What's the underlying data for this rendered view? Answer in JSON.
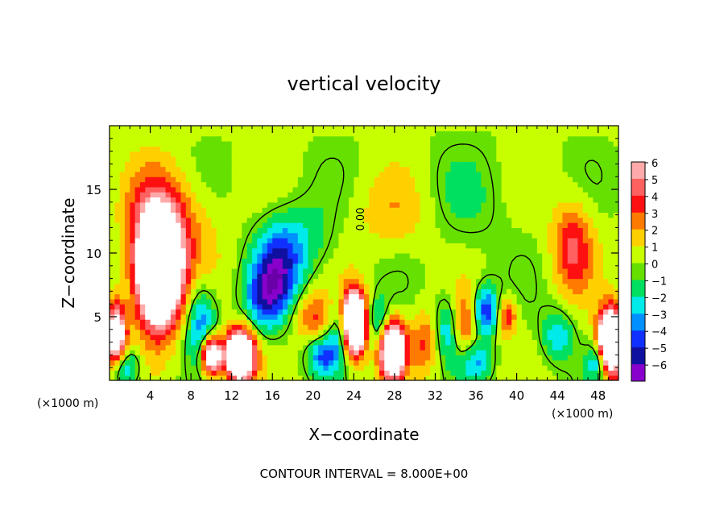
{
  "chart_data": {
    "type": "heatmap",
    "title": "vertical velocity",
    "xlabel": "X−coordinate",
    "ylabel": "Z−coordinate",
    "x_unit_left": "(×1000 m)",
    "x_unit_right": "(×1000 m)",
    "footer": "CONTOUR INTERVAL = 8.000E+00",
    "contour_label": "0.00",
    "xlim": [
      0,
      50
    ],
    "ylim": [
      0,
      20
    ],
    "x_ticks": [
      4,
      8,
      12,
      16,
      20,
      24,
      28,
      32,
      36,
      40,
      44,
      48
    ],
    "y_ticks": [
      5,
      10,
      15
    ],
    "colorbar": {
      "range": [
        -6,
        6
      ],
      "labels": [
        "6",
        "5",
        "4",
        "3",
        "2",
        "1",
        "0",
        "−1",
        "−2",
        "−3",
        "−4",
        "−5",
        "−6"
      ],
      "colors": [
        "#ffaaaa",
        "#ff6060",
        "#ff1010",
        "#ff7a00",
        "#ffd000",
        "#c8ff00",
        "#66e000",
        "#00e060",
        "#00eaea",
        "#0090ff",
        "#1030ff",
        "#1010a0",
        "#8800cc"
      ]
    },
    "features": [
      {
        "x": 4.8,
        "z": 8.5,
        "w": 15,
        "rx": 2.2,
        "rz": 4.2
      },
      {
        "x": 4.5,
        "z": 13.0,
        "w": 3,
        "rx": 3.0,
        "rz": 4.0
      },
      {
        "x": 0.6,
        "z": 3.5,
        "w": 9,
        "rx": 1.0,
        "rz": 2.5
      },
      {
        "x": 1.5,
        "z": 1.0,
        "w": -4,
        "rx": 1.5,
        "rz": 1.5
      },
      {
        "x": 9.0,
        "z": 4.5,
        "w": -4,
        "rx": 1.5,
        "rz": 3.0
      },
      {
        "x": 10.0,
        "z": 2.0,
        "w": 10,
        "rx": 1.0,
        "rz": 1.5
      },
      {
        "x": 12.8,
        "z": 2.0,
        "w": 13,
        "rx": 1.4,
        "rz": 2.0
      },
      {
        "x": 15.0,
        "z": 6.5,
        "w": -3,
        "rx": 2.0,
        "rz": 2.5
      },
      {
        "x": 16.5,
        "z": 8.5,
        "w": -5,
        "rx": 2.2,
        "rz": 3.5
      },
      {
        "x": 19.0,
        "z": 11.0,
        "w": -2,
        "rx": 3.0,
        "rz": 3.0
      },
      {
        "x": 20.0,
        "z": 5.0,
        "w": 3,
        "rx": 2.0,
        "rz": 2.0
      },
      {
        "x": 21.0,
        "z": 2.0,
        "w": -4,
        "rx": 1.5,
        "rz": 1.5
      },
      {
        "x": 22.8,
        "z": 4.0,
        "w": -4,
        "rx": 1.2,
        "rz": 2.5
      },
      {
        "x": 24.0,
        "z": 4.5,
        "w": 14,
        "rx": 1.2,
        "rz": 2.5
      },
      {
        "x": 26.5,
        "z": 4.5,
        "w": -3,
        "rx": 1.2,
        "rz": 2.0
      },
      {
        "x": 27.8,
        "z": 2.5,
        "w": 12,
        "rx": 1.2,
        "rz": 2.2
      },
      {
        "x": 31.0,
        "z": 3.0,
        "w": 3,
        "rx": 1.5,
        "rz": 2.5
      },
      {
        "x": 33.0,
        "z": 4.0,
        "w": -3,
        "rx": 1.2,
        "rz": 2.5
      },
      {
        "x": 35.0,
        "z": 4.5,
        "w": 3,
        "rx": 1.2,
        "rz": 2.5
      },
      {
        "x": 37.0,
        "z": 5.5,
        "w": -5,
        "rx": 1.3,
        "rz": 2.0
      },
      {
        "x": 39.0,
        "z": 5.0,
        "w": 4,
        "rx": 1.0,
        "rz": 1.5
      },
      {
        "x": 36.0,
        "z": 1.5,
        "w": -3,
        "rx": 1.5,
        "rz": 1.5
      },
      {
        "x": 45.5,
        "z": 10.5,
        "w": 4,
        "rx": 2.0,
        "rz": 3.5
      },
      {
        "x": 44.0,
        "z": 3.5,
        "w": -3,
        "rx": 1.5,
        "rz": 2.0
      },
      {
        "x": 49.2,
        "z": 3.0,
        "w": 14,
        "rx": 1.2,
        "rz": 2.5
      },
      {
        "x": 48.0,
        "z": 1.5,
        "w": -4,
        "rx": 1.0,
        "rz": 1.5
      },
      {
        "x": 8.0,
        "z": 12.0,
        "w": 1.5,
        "rx": 3.0,
        "rz": 4.0
      },
      {
        "x": 28.0,
        "z": 13.0,
        "w": 1.5,
        "rx": 4.0,
        "rz": 3.0
      },
      {
        "x": 35.0,
        "z": 14.0,
        "w": -1,
        "rx": 4.0,
        "rz": 4.0
      }
    ]
  }
}
